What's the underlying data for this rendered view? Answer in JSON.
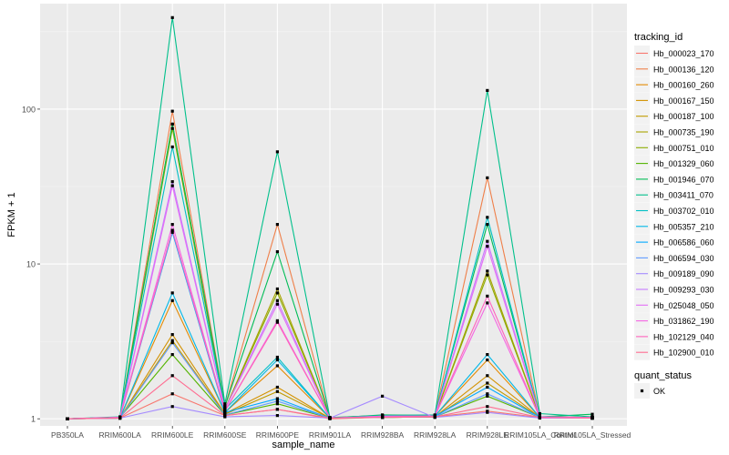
{
  "chart_data": {
    "type": "line",
    "xlabel": "sample_name",
    "ylabel": "FPKM + 1",
    "y_scale": "log10",
    "ylim": [
      0.9,
      480
    ],
    "y_ticks": [
      1,
      10,
      100
    ],
    "y_tick_labels": [
      "1",
      "10",
      "100"
    ],
    "grid": true,
    "categories": [
      "PB350LA",
      "RRIM600LA",
      "RRIM600LE",
      "RRIM600SE",
      "RRIM600PE",
      "RRIM901LA",
      "RRIM928BA",
      "RRIM928LA",
      "RRIM928LE",
      "RRIM105LA_Control",
      "RRIM105LA_Stressed"
    ],
    "legend": {
      "position": "right",
      "title": "tracking_id",
      "shape_title": "quant_status",
      "shape_entries": [
        "OK"
      ]
    },
    "series": [
      {
        "name": "Hb_000023_170",
        "color": "#F8766D",
        "values": [
          1,
          1.01,
          1.45,
          1.05,
          1.15,
          1,
          1.02,
          1.03,
          1.12,
          1.02,
          1.01
        ]
      },
      {
        "name": "Hb_000136_120",
        "color": "#EF7F49",
        "values": [
          1,
          1.02,
          97,
          1.2,
          18,
          1.02,
          1.05,
          1.05,
          36,
          1.03,
          1.02
        ]
      },
      {
        "name": "Hb_000160_260",
        "color": "#E38900",
        "values": [
          1,
          1.01,
          5.8,
          1.1,
          2.2,
          1.01,
          1.03,
          1.04,
          2.4,
          1.02,
          1.01
        ]
      },
      {
        "name": "Hb_000167_150",
        "color": "#D39200",
        "values": [
          1,
          1.01,
          3.5,
          1.08,
          1.6,
          1.01,
          1.02,
          1.03,
          1.9,
          1.02,
          1.01
        ]
      },
      {
        "name": "Hb_000187_100",
        "color": "#C09B00",
        "values": [
          1,
          1.01,
          3.2,
          1.07,
          1.5,
          1.01,
          1.02,
          1.03,
          1.7,
          1.02,
          1.01
        ]
      },
      {
        "name": "Hb_000735_190",
        "color": "#A8A400",
        "values": [
          1,
          1.02,
          80,
          1.15,
          6.9,
          1.01,
          1.04,
          1.04,
          9,
          1.03,
          1.02
        ]
      },
      {
        "name": "Hb_000751_010",
        "color": "#8CAB00",
        "values": [
          1,
          1.02,
          75,
          1.15,
          6.5,
          1.01,
          1.04,
          1.04,
          8.5,
          1.03,
          1.02
        ]
      },
      {
        "name": "Hb_001329_060",
        "color": "#53B400",
        "values": [
          1,
          1.02,
          2.6,
          1.06,
          1.25,
          1.01,
          1.02,
          1.03,
          1.4,
          1.02,
          1.01
        ]
      },
      {
        "name": "Hb_001946_070",
        "color": "#00BC56",
        "values": [
          1,
          1.02,
          80,
          1.2,
          12,
          1.01,
          1.06,
          1.05,
          18,
          1.03,
          1.07
        ]
      },
      {
        "name": "Hb_003411_070",
        "color": "#00C08B",
        "values": [
          1,
          1.03,
          390,
          1.25,
          53,
          1.02,
          1.05,
          1.06,
          132,
          1.08,
          1.03
        ]
      },
      {
        "name": "Hb_003702_010",
        "color": "#00BFC4",
        "values": [
          1,
          1.02,
          57,
          1.15,
          2.5,
          1.01,
          1.04,
          1.04,
          20,
          1.03,
          1.02
        ]
      },
      {
        "name": "Hb_005357_210",
        "color": "#00B8E7",
        "values": [
          1,
          1.01,
          6.5,
          1.1,
          2.4,
          1.01,
          1.03,
          1.04,
          2.6,
          1.02,
          1.01
        ]
      },
      {
        "name": "Hb_006586_060",
        "color": "#00A9FF",
        "values": [
          1,
          1.02,
          16,
          1.1,
          1.35,
          1.01,
          1.03,
          1.04,
          1.6,
          1.02,
          1.01
        ]
      },
      {
        "name": "Hb_006594_030",
        "color": "#619CFF",
        "values": [
          1,
          1.01,
          3.1,
          1.06,
          1.3,
          1.01,
          1.02,
          1.03,
          1.45,
          1.02,
          1.01
        ]
      },
      {
        "name": "Hb_009189_090",
        "color": "#A58AFF",
        "values": [
          1,
          1.01,
          1.2,
          1.03,
          1.05,
          1.01,
          1.4,
          1.02,
          1.1,
          1.01,
          1.01
        ]
      },
      {
        "name": "Hb_009293_030",
        "color": "#C77CFF",
        "values": [
          1,
          1.02,
          34,
          1.15,
          5.8,
          1.01,
          1.04,
          1.04,
          14,
          1.03,
          1.02
        ]
      },
      {
        "name": "Hb_025048_050",
        "color": "#E36EF6",
        "values": [
          1,
          1.02,
          32,
          1.15,
          5.5,
          1.01,
          1.04,
          1.04,
          13,
          1.03,
          1.02
        ]
      },
      {
        "name": "Hb_031862_190",
        "color": "#F564E3",
        "values": [
          1,
          1.02,
          18,
          1.12,
          4.3,
          1.01,
          1.03,
          1.04,
          5.6,
          1.02,
          1.02
        ]
      },
      {
        "name": "Hb_102129_040",
        "color": "#FF62BC",
        "values": [
          1,
          1.02,
          16.5,
          1.12,
          4.2,
          1.01,
          1.03,
          1.04,
          6.2,
          1.02,
          1.02
        ]
      },
      {
        "name": "Hb_102900_010",
        "color": "#FF6C91",
        "values": [
          1,
          1.01,
          1.9,
          1.05,
          1.15,
          1.01,
          1.02,
          1.03,
          1.2,
          1.02,
          1.01
        ]
      }
    ]
  }
}
